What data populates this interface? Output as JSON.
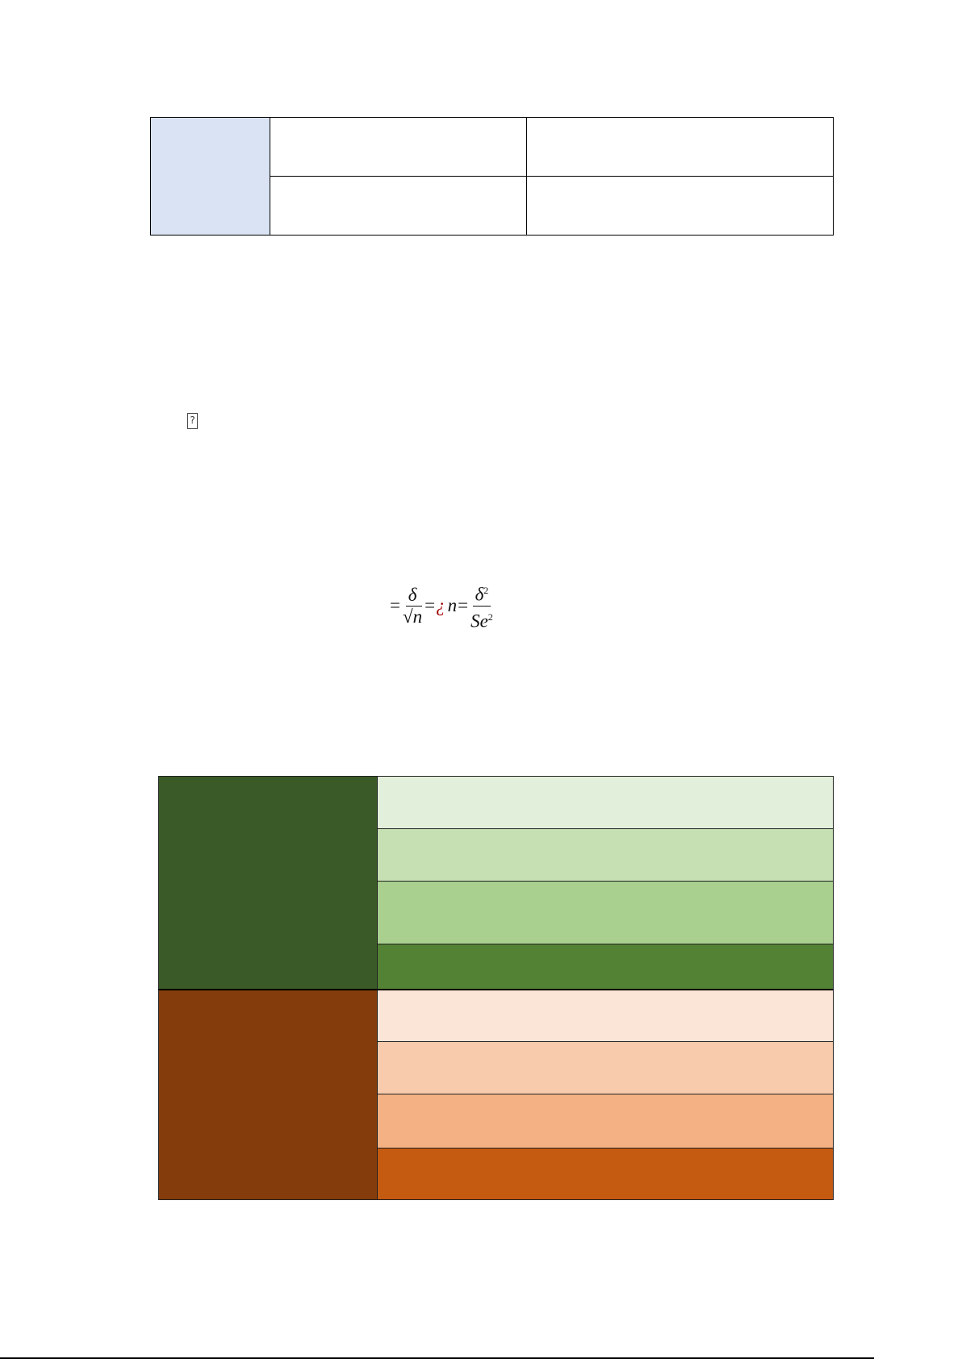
{
  "table_top": {
    "header_cell_color": "#dae3f3",
    "rows": 2,
    "columns": 3
  },
  "missing_glyph": "?",
  "formula": {
    "eq1": "=",
    "frac1_num": "δ",
    "frac1_den_root": "√",
    "frac1_den_var": "n",
    "eq2": "=",
    "unknown_char": "¿",
    "var_n": "n",
    "eq3": "=",
    "frac2_num": "δ",
    "frac2_num_exp": "2",
    "frac2_den": "Se",
    "frac2_den_exp": "2",
    "unknown_char_color": "#a00000"
  },
  "table_bottom": {
    "groups": [
      {
        "label_color": "#3a5a27",
        "row_colors": [
          "#e2efda",
          "#c6e0b4",
          "#a9d08e",
          "#548235"
        ]
      },
      {
        "label_color": "#843c0c",
        "row_colors": [
          "#fbe5d6",
          "#f8cbad",
          "#f4b183",
          "#c55a11"
        ]
      }
    ]
  }
}
